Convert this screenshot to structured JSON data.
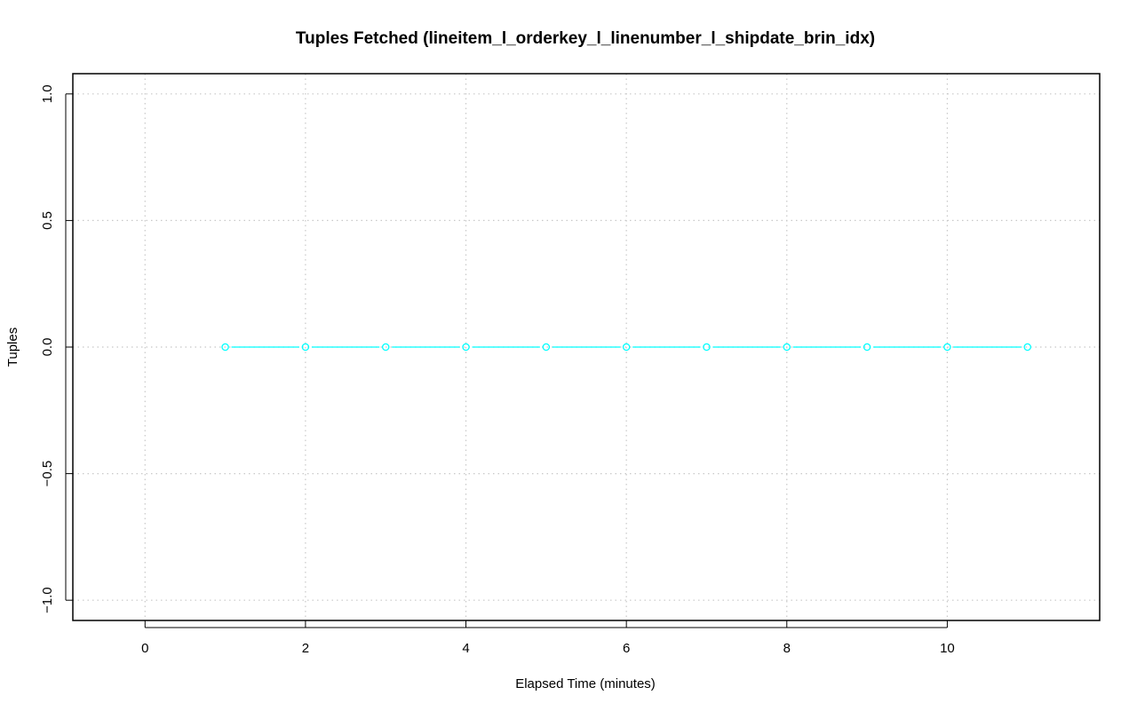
{
  "chart_data": {
    "type": "line",
    "title": "Tuples Fetched (lineitem_l_orderkey_l_linenumber_l_shipdate_brin_idx)",
    "xlabel": "Elapsed Time (minutes)",
    "ylabel": "Tuples",
    "xlim": [
      -0.9,
      11.9
    ],
    "ylim": [
      -1.08,
      1.08
    ],
    "x_ticks": [
      0,
      2,
      4,
      6,
      8,
      10
    ],
    "x_tick_labels": [
      "0",
      "2",
      "4",
      "6",
      "8",
      "10"
    ],
    "y_ticks": [
      -1.0,
      -0.5,
      0.0,
      0.5,
      1.0
    ],
    "y_tick_labels": [
      "−1.0",
      "−0.5",
      "0.0",
      "0.5",
      "1.0"
    ],
    "grid": true,
    "legend": "none",
    "series": [
      {
        "color": "#00ffff",
        "x": [
          1,
          2,
          3,
          4,
          5,
          6,
          7,
          8,
          9,
          10,
          11
        ],
        "values": [
          0,
          0,
          0,
          0,
          0,
          0,
          0,
          0,
          0,
          0,
          0
        ]
      }
    ]
  }
}
